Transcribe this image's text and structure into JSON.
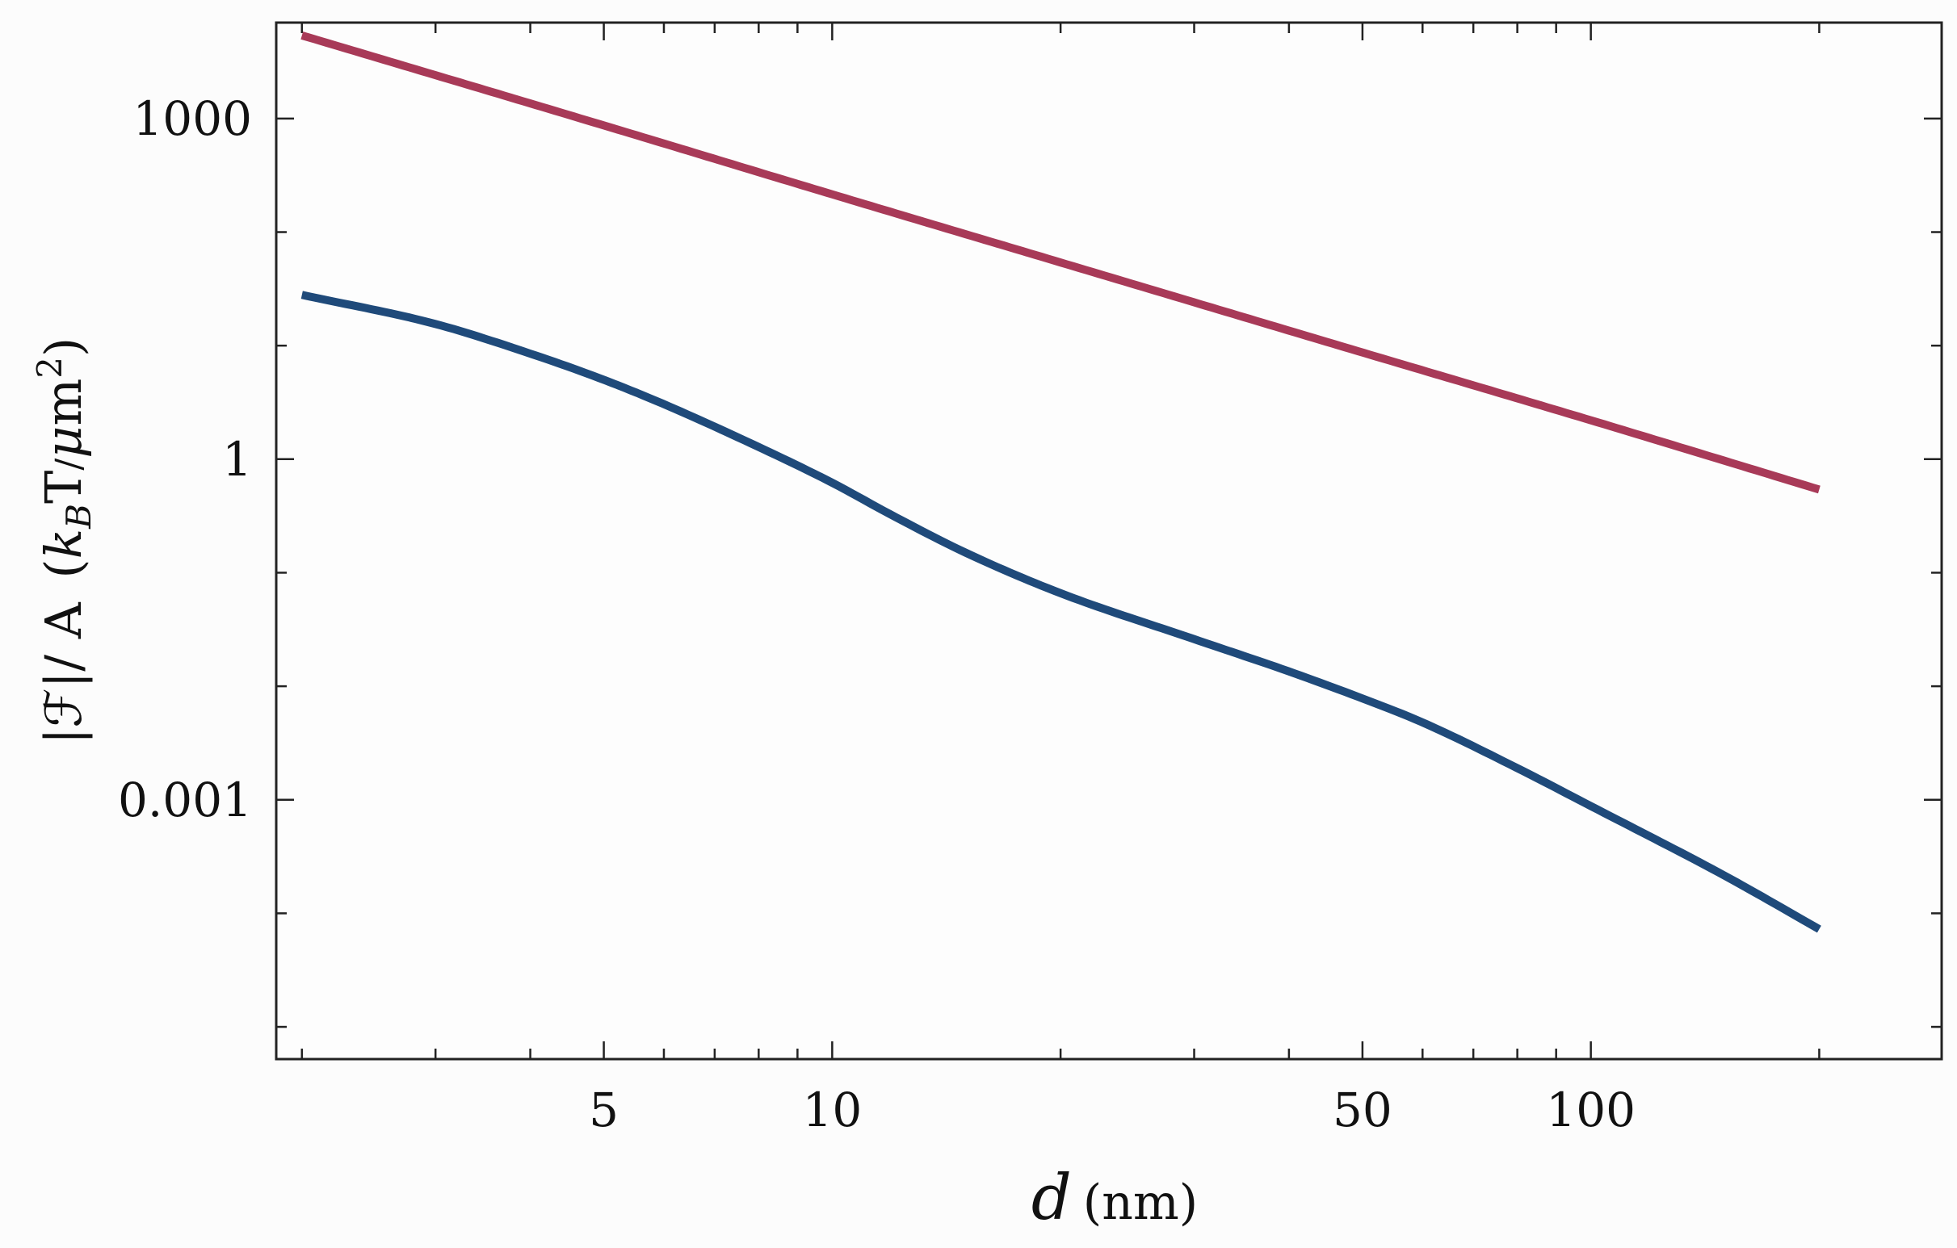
{
  "chart_data": {
    "type": "line",
    "xscale": "log",
    "yscale": "log",
    "xlim": [
      1.85,
      290
    ],
    "ylim": [
      5.2e-06,
      7000
    ],
    "grid": false,
    "legend": "none",
    "xlabel": {
      "var": "d",
      "unit": "(nm)"
    },
    "ylabel": {
      "lhs": "|ℱ|/ A",
      "paren_open": "(",
      "k": "k",
      "sub": "B",
      "T": "T",
      "slash": "/",
      "mu": "μ",
      "m": "m",
      "sup": "2",
      "paren_close": ")"
    },
    "x_ticks": [
      5,
      10,
      50,
      100
    ],
    "x_tick_labels": [
      "5",
      "10",
      "50",
      "100"
    ],
    "y_ticks": [
      1000,
      1,
      0.001
    ],
    "y_tick_labels": [
      "1000",
      "1",
      "0.001"
    ],
    "series": [
      {
        "color": "#a83a58",
        "x": [
          2,
          5,
          10,
          20,
          50,
          100,
          200
        ],
        "y": [
          5400,
          870,
          215,
          54,
          8.7,
          2.2,
          0.54
        ]
      },
      {
        "color": "#1f4a7a",
        "x": [
          2,
          3,
          4,
          5,
          6,
          8,
          10,
          12,
          15,
          20,
          30,
          40,
          50,
          60,
          80,
          100,
          150,
          200
        ],
        "y": [
          28,
          15.5,
          8.5,
          5.0,
          3.05,
          1.28,
          0.62,
          0.32,
          0.15,
          0.066,
          0.026,
          0.0135,
          0.0078,
          0.0048,
          0.0019,
          0.00088,
          0.000215,
          7.25e-05
        ]
      }
    ]
  }
}
